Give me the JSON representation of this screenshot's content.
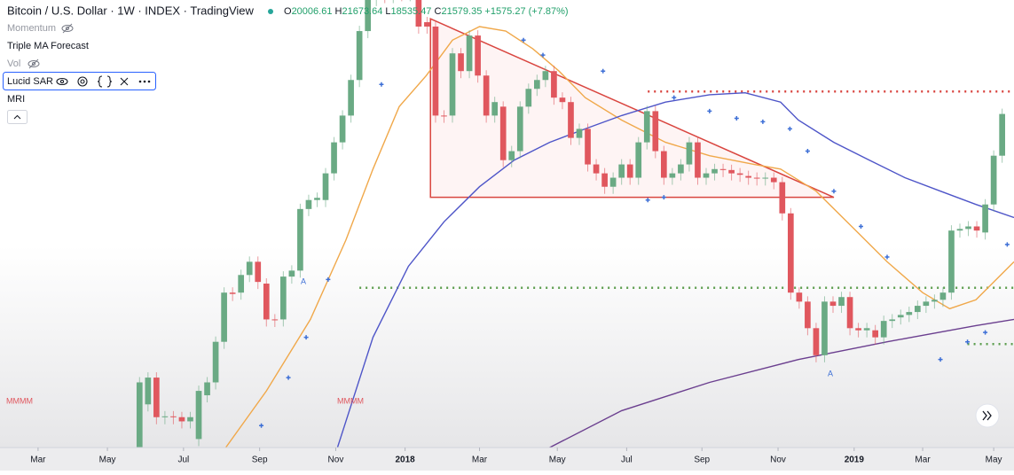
{
  "header": {
    "title": "Bitcoin / U.S. Dollar · 1W · INDEX · TradingView",
    "ohlc": [
      {
        "label": "O",
        "value": "20006.61"
      },
      {
        "label": "H",
        "value": "21673.64"
      },
      {
        "label": "L",
        "value": "18535.47"
      },
      {
        "label": "C",
        "value": "21579.35"
      }
    ],
    "change": "+1575.27 (+7.87%)"
  },
  "indicators": [
    "Momentum",
    "Triple MA Forecast",
    "Vol",
    "Lucid SAR",
    "MRI"
  ],
  "chart_data": {
    "type": "candlestick",
    "log_scale": true,
    "xlim": [
      -4.5,
      115.4
    ],
    "ylim": [
      2040,
      19800
    ],
    "xticks": [
      {
        "value": 0,
        "label": "Mar"
      },
      {
        "value": 8.2,
        "label": "May"
      },
      {
        "value": 17.2,
        "label": "Jul"
      },
      {
        "value": 26.2,
        "label": "Sep"
      },
      {
        "value": 35.2,
        "label": "Nov"
      },
      {
        "value": 43.4,
        "label": "2018"
      },
      {
        "value": 52.2,
        "label": "Mar"
      },
      {
        "value": 61.4,
        "label": "May"
      },
      {
        "value": 69.6,
        "label": "Jul"
      },
      {
        "value": 78.5,
        "label": "Sep"
      },
      {
        "value": 87.5,
        "label": "Nov"
      },
      {
        "value": 96.5,
        "label": "2019"
      },
      {
        "value": 104.6,
        "label": "Mar"
      },
      {
        "value": 113.0,
        "label": "May"
      }
    ],
    "up_color": "#6aaa84",
    "down_color": "#e0575e",
    "x": [
      12,
      13,
      14,
      15,
      16,
      17,
      18,
      19,
      20,
      21,
      22,
      23,
      24,
      25,
      26,
      27,
      28,
      29,
      30,
      31,
      32,
      33,
      34,
      35,
      36,
      37,
      38,
      39,
      40,
      41,
      42,
      43,
      44,
      45,
      46,
      47,
      48,
      49,
      50,
      51,
      52,
      53,
      54,
      55,
      56,
      57,
      58,
      59,
      60,
      61,
      62,
      63,
      64,
      65,
      66,
      67,
      68,
      69,
      70,
      71,
      72,
      73,
      74,
      75,
      76,
      77,
      78,
      79,
      80,
      81,
      82,
      83,
      84,
      85,
      86,
      87,
      88,
      89,
      90,
      91,
      92,
      93,
      94,
      95,
      96,
      97,
      98,
      99,
      100,
      101,
      102,
      103,
      104,
      105,
      106,
      107,
      108,
      109,
      110,
      111,
      112,
      113,
      114
    ],
    "open": [
      2040,
      2540,
      2910,
      2380,
      2390,
      2380,
      2330,
      2130,
      2660,
      2840,
      3490,
      4480,
      4480,
      4900,
      5240,
      4690,
      3910,
      3910,
      4860,
      5010,
      6850,
      7170,
      7170,
      8210,
      9610,
      11010,
      13190,
      16910,
      19900,
      21000,
      20200,
      21500,
      20400,
      19800,
      17690,
      17300,
      11010,
      11010,
      15100,
      13800,
      16530,
      13490,
      11010,
      11520,
      8780,
      9190,
      11520,
      12610,
      13190,
      13800,
      12060,
      11790,
      9830,
      10290,
      8590,
      8210,
      7670,
      8030,
      8590,
      8030,
      9610,
      11260,
      9190,
      8030,
      8210,
      8590,
      9610,
      8030,
      8210,
      8390,
      8350,
      8210,
      8100,
      8030,
      8000,
      8030,
      7850,
      6700,
      4480,
      4280,
      3740,
      3260,
      4280,
      4190,
      4380,
      3740,
      3700,
      3700,
      3570,
      3880,
      3950,
      4000,
      4060,
      4190,
      4280,
      4320,
      4480,
      6140,
      6190,
      6270,
      6080,
      7010,
      8980
    ],
    "close": [
      2840,
      2910,
      2380,
      2390,
      2380,
      2330,
      2380,
      2720,
      2840,
      3490,
      4480,
      4450,
      4900,
      5240,
      4730,
      3910,
      3900,
      4860,
      5010,
      6850,
      7170,
      7250,
      8210,
      9610,
      11010,
      13190,
      16910,
      19800,
      21000,
      20200,
      21500,
      20400,
      20900,
      17300,
      17300,
      11010,
      11000,
      15100,
      13800,
      16530,
      13490,
      11010,
      11790,
      8780,
      9190,
      11520,
      12610,
      13190,
      13800,
      12060,
      11790,
      9830,
      10290,
      8590,
      8210,
      7670,
      8030,
      8590,
      8030,
      9610,
      11260,
      9190,
      8030,
      8210,
      8590,
      9610,
      8030,
      8210,
      8390,
      8350,
      8210,
      8150,
      8030,
      8000,
      8030,
      7850,
      6700,
      4480,
      4280,
      3740,
      3260,
      4280,
      4190,
      4380,
      3740,
      3700,
      3740,
      3570,
      3880,
      3910,
      4000,
      4060,
      4190,
      4280,
      4320,
      4480,
      6140,
      6190,
      6270,
      6140,
      7010,
      8980,
      11100
    ],
    "series": [
      {
        "color": "#f0a84a",
        "x": [
          22.2,
          27.0,
          32.2,
          36.4,
          39.6,
          42.7,
          45.9,
          49.0,
          52.2,
          55.3,
          58.5,
          61.6,
          64.7,
          69.0,
          74.2,
          79.4,
          84.7,
          87.8,
          92.0,
          96.2,
          100.4,
          104.6,
          107.8,
          110.9,
          115.4
        ],
        "values": [
          2040,
          2720,
          3910,
          5850,
          8390,
          11520,
          13490,
          16150,
          17300,
          16910,
          15450,
          13800,
          12060,
          10760,
          9610,
          8980,
          8590,
          8390,
          7500,
          6270,
          5240,
          4480,
          4130,
          4320,
          5240
        ]
      },
      {
        "color": "#4e55c8",
        "x": [
          35.4,
          39.6,
          43.8,
          48.0,
          52.2,
          56.3,
          60.5,
          64.7,
          69.0,
          74.2,
          79.4,
          83.6,
          87.8,
          89.9,
          94.1,
          98.3,
          102.5,
          106.7,
          110.9,
          115.4
        ],
        "values": [
          2040,
          3570,
          5120,
          6420,
          7670,
          8780,
          9610,
          10290,
          11010,
          11790,
          12240,
          12360,
          11790,
          10760,
          9610,
          8780,
          8030,
          7500,
          7010,
          6560
        ]
      },
      {
        "color": "#6b3f8f",
        "x": [
          60.5,
          69.0,
          79.4,
          89.9,
          100.4,
          110.9,
          115.4
        ],
        "values": [
          2040,
          2460,
          2840,
          3190,
          3490,
          3790,
          3910
        ]
      }
    ],
    "sar": {
      "color": "#3d6fd6",
      "x": [
        26.4,
        29.6,
        31.7,
        34.3,
        40.6,
        57.4,
        59.7,
        66.8,
        72.1,
        74.0,
        75.2,
        79.4,
        82.6,
        85.7,
        88.9,
        91.0,
        94.1,
        97.3,
        100.4,
        106.7,
        109.9,
        112.0,
        114.6
      ],
      "values": [
        2280,
        2910,
        3570,
        4790,
        12900,
        16150,
        14970,
        13800,
        7170,
        7270,
        12060,
        11260,
        10860,
        10670,
        10290,
        9190,
        7500,
        6270,
        5370,
        3190,
        3490,
        3660,
        5720
      ]
    },
    "triangle": {
      "color": "#d9453f",
      "x": [
        46.4,
        94.1,
        46.4
      ],
      "values": [
        18000,
        7270,
        7270
      ]
    },
    "levels": [
      {
        "color": "#d9453f",
        "value": 12440,
        "x_start": 72.1
      },
      {
        "color": "#5c9e4f",
        "value": 4590,
        "x_start": 38.0
      },
      {
        "color": "#5c9e4f",
        "value": 3450,
        "x_start": 109.9
      }
    ],
    "annotations": [
      "MMMM",
      "MMMM",
      "A",
      "A"
    ]
  }
}
